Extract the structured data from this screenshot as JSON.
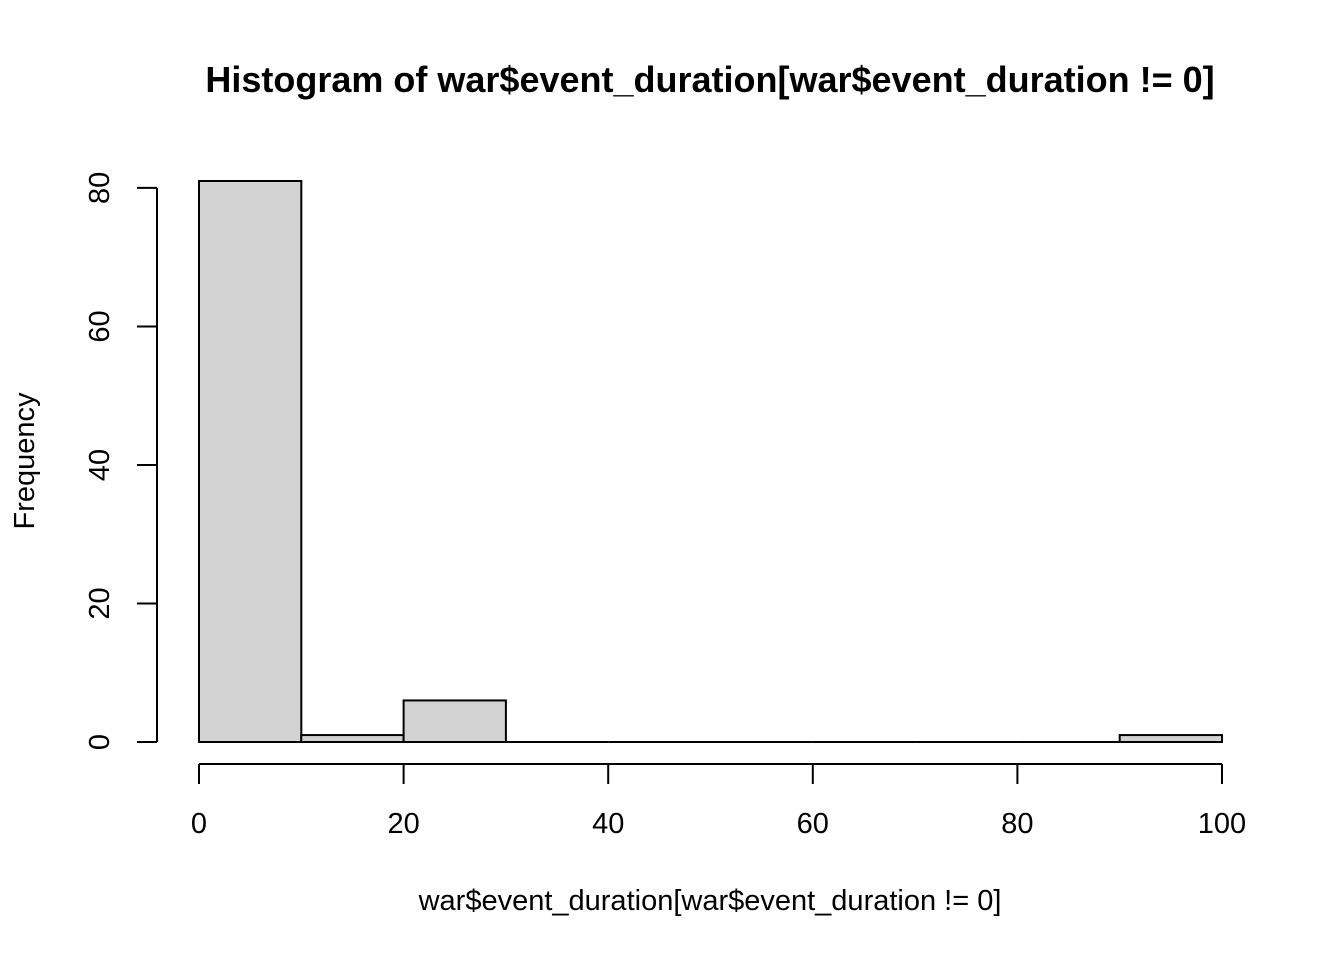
{
  "chart_data": {
    "type": "bar",
    "title": "Histogram of war$event_duration[war$event_duration != 0]",
    "xlabel": "war$event_duration[war$event_duration != 0]",
    "ylabel": "Frequency",
    "bins": [
      {
        "x0": 0,
        "x1": 10,
        "count": 81
      },
      {
        "x0": 10,
        "x1": 20,
        "count": 1
      },
      {
        "x0": 20,
        "x1": 30,
        "count": 6
      },
      {
        "x0": 30,
        "x1": 40,
        "count": 0
      },
      {
        "x0": 40,
        "x1": 50,
        "count": 0
      },
      {
        "x0": 50,
        "x1": 60,
        "count": 0
      },
      {
        "x0": 60,
        "x1": 70,
        "count": 0
      },
      {
        "x0": 70,
        "x1": 80,
        "count": 0
      },
      {
        "x0": 80,
        "x1": 90,
        "count": 0
      },
      {
        "x0": 90,
        "x1": 100,
        "count": 1
      }
    ],
    "xlim": [
      0,
      100
    ],
    "ylim": [
      0,
      81
    ],
    "xticks": [
      0,
      20,
      40,
      60,
      80,
      100
    ],
    "yticks": [
      0,
      20,
      40,
      60,
      80
    ],
    "bar_color": "#d3d3d3",
    "grid": false,
    "legend": "none"
  }
}
